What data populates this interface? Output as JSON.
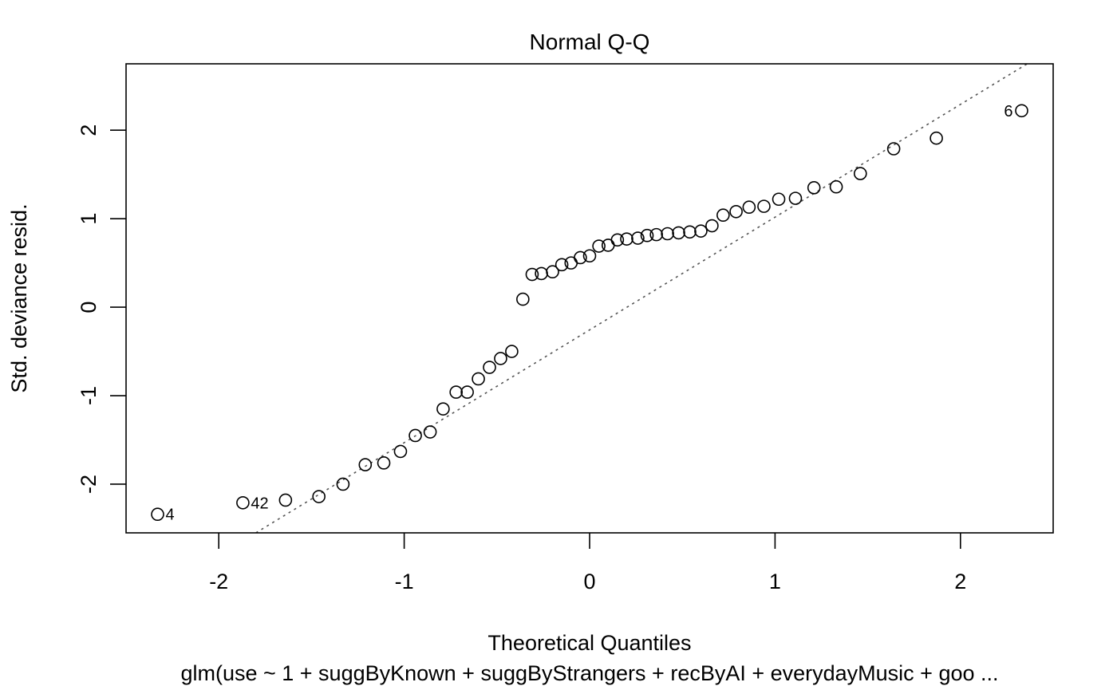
{
  "chart_data": {
    "type": "scatter",
    "title": "Normal Q-Q",
    "xlabel": "Theoretical Quantiles",
    "ylabel": "Std. deviance resid.",
    "subtitle": "glm(use ~ 1 + suggByKnown + suggByStrangers + recByAI + everydayMusic + goo ...",
    "xlim": [
      -2.5,
      2.5
    ],
    "ylim": [
      -2.55,
      2.75
    ],
    "x_ticks": [
      -2,
      -1,
      0,
      1,
      2
    ],
    "y_ticks": [
      -2,
      -1,
      0,
      1,
      2
    ],
    "x_tick_labels": [
      "-2",
      "-1",
      "0",
      "1",
      "2"
    ],
    "y_tick_labels": [
      "-2",
      "-1",
      "0",
      "1",
      "2"
    ],
    "grid": false,
    "reference_line": {
      "style": "dotted",
      "points": [
        [
          -1.8,
          -2.55
        ],
        [
          2.36,
          2.75
        ]
      ]
    },
    "points": [
      {
        "x": -2.33,
        "y": -2.34,
        "label": "4"
      },
      {
        "x": -1.87,
        "y": -2.21,
        "label": "42"
      },
      {
        "x": -1.64,
        "y": -2.18
      },
      {
        "x": -1.46,
        "y": -2.14
      },
      {
        "x": -1.33,
        "y": -2.0
      },
      {
        "x": -1.21,
        "y": -1.78
      },
      {
        "x": -1.11,
        "y": -1.76
      },
      {
        "x": -1.02,
        "y": -1.63
      },
      {
        "x": -0.94,
        "y": -1.45
      },
      {
        "x": -0.86,
        "y": -1.41
      },
      {
        "x": -0.79,
        "y": -1.15
      },
      {
        "x": -0.72,
        "y": -0.96
      },
      {
        "x": -0.66,
        "y": -0.96
      },
      {
        "x": -0.6,
        "y": -0.81
      },
      {
        "x": -0.54,
        "y": -0.68
      },
      {
        "x": -0.48,
        "y": -0.58
      },
      {
        "x": -0.42,
        "y": -0.5
      },
      {
        "x": -0.36,
        "y": 0.09
      },
      {
        "x": -0.31,
        "y": 0.37
      },
      {
        "x": -0.26,
        "y": 0.38
      },
      {
        "x": -0.2,
        "y": 0.4
      },
      {
        "x": -0.15,
        "y": 0.48
      },
      {
        "x": -0.1,
        "y": 0.5
      },
      {
        "x": -0.05,
        "y": 0.56
      },
      {
        "x": 0.0,
        "y": 0.58
      },
      {
        "x": 0.05,
        "y": 0.69
      },
      {
        "x": 0.1,
        "y": 0.7
      },
      {
        "x": 0.15,
        "y": 0.76
      },
      {
        "x": 0.2,
        "y": 0.77
      },
      {
        "x": 0.26,
        "y": 0.78
      },
      {
        "x": 0.31,
        "y": 0.81
      },
      {
        "x": 0.36,
        "y": 0.82
      },
      {
        "x": 0.42,
        "y": 0.83
      },
      {
        "x": 0.48,
        "y": 0.84
      },
      {
        "x": 0.54,
        "y": 0.85
      },
      {
        "x": 0.6,
        "y": 0.86
      },
      {
        "x": 0.66,
        "y": 0.92
      },
      {
        "x": 0.72,
        "y": 1.04
      },
      {
        "x": 0.79,
        "y": 1.08
      },
      {
        "x": 0.86,
        "y": 1.13
      },
      {
        "x": 0.94,
        "y": 1.14
      },
      {
        "x": 1.02,
        "y": 1.22
      },
      {
        "x": 1.11,
        "y": 1.23
      },
      {
        "x": 1.21,
        "y": 1.35
      },
      {
        "x": 1.33,
        "y": 1.36
      },
      {
        "x": 1.46,
        "y": 1.51
      },
      {
        "x": 1.64,
        "y": 1.79
      },
      {
        "x": 1.87,
        "y": 1.91
      },
      {
        "x": 2.33,
        "y": 2.22,
        "label": "6"
      }
    ]
  }
}
